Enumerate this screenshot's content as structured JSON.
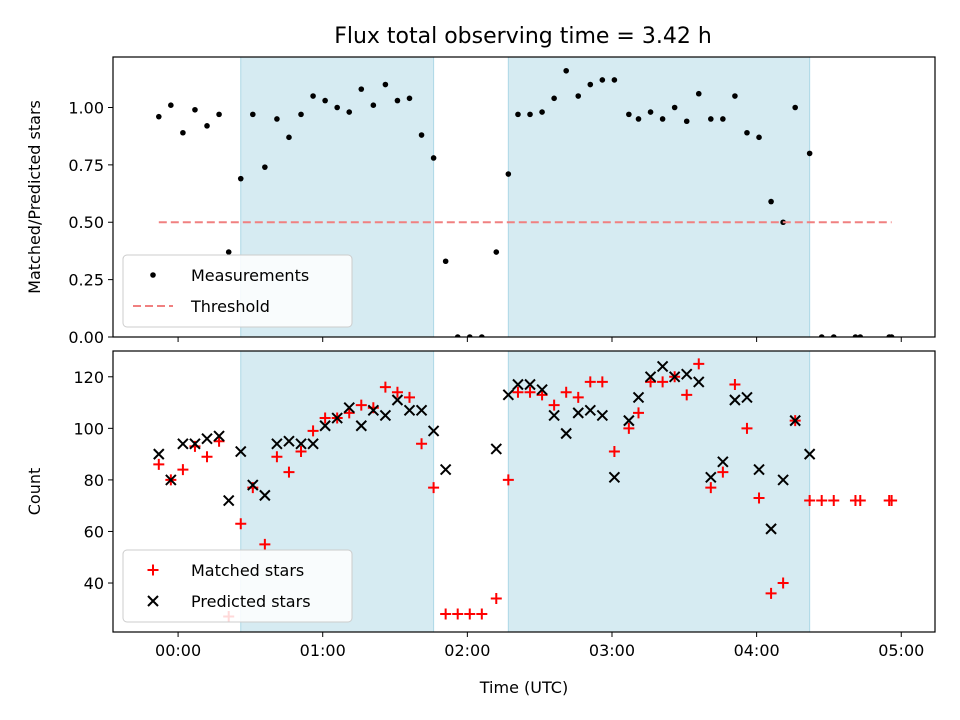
{
  "title": "Flux total observing time = 3.42 h",
  "colors": {
    "shade": "#add8e6",
    "threshold": "#f08080",
    "matched": "#ff0000",
    "predicted": "#000000",
    "measurement": "#000000"
  },
  "chart_data": [
    {
      "type": "scatter",
      "ylabel": "Matched/Predicted stars",
      "xlabel": "",
      "xlim": [
        "23:33",
        "05:14"
      ],
      "ylim": [
        0,
        1.22
      ],
      "y_ticks": [
        "0.00",
        "0.25",
        "0.50",
        "0.75",
        "1.00"
      ],
      "x_ticks": [
        "00:00",
        "01:00",
        "02:00",
        "03:00",
        "04:00",
        "05:00"
      ],
      "shaded_spans": [
        [
          "00:26",
          "01:46"
        ],
        [
          "02:17",
          "04:22"
        ]
      ],
      "legend_placement": "lower-left",
      "series": [
        {
          "name": "Measurements",
          "marker": "dot",
          "points": [
            [
              "23:52",
              0.96
            ],
            [
              "23:57",
              1.01
            ],
            [
              "00:02",
              0.89
            ],
            [
              "00:07",
              0.99
            ],
            [
              "00:12",
              0.92
            ],
            [
              "00:17",
              0.97
            ],
            [
              "00:21",
              0.37
            ],
            [
              "00:26",
              0.69
            ],
            [
              "00:31",
              0.97
            ],
            [
              "00:36",
              0.74
            ],
            [
              "00:41",
              0.95
            ],
            [
              "00:46",
              0.87
            ],
            [
              "00:51",
              0.97
            ],
            [
              "00:56",
              1.05
            ],
            [
              "01:01",
              1.03
            ],
            [
              "01:06",
              1.0
            ],
            [
              "01:11",
              0.98
            ],
            [
              "01:16",
              1.08
            ],
            [
              "01:21",
              1.01
            ],
            [
              "01:26",
              1.1
            ],
            [
              "01:31",
              1.03
            ],
            [
              "01:36",
              1.04
            ],
            [
              "01:41",
              0.88
            ],
            [
              "01:46",
              0.78
            ],
            [
              "01:51",
              0.33
            ],
            [
              "01:56",
              0.0
            ],
            [
              "02:01",
              0.0
            ],
            [
              "02:06",
              0.0
            ],
            [
              "02:12",
              0.37
            ],
            [
              "02:17",
              0.71
            ],
            [
              "02:21",
              0.97
            ],
            [
              "02:26",
              0.97
            ],
            [
              "02:31",
              0.98
            ],
            [
              "02:36",
              1.04
            ],
            [
              "02:41",
              1.16
            ],
            [
              "02:46",
              1.05
            ],
            [
              "02:51",
              1.1
            ],
            [
              "02:56",
              1.12
            ],
            [
              "03:01",
              1.12
            ],
            [
              "03:07",
              0.97
            ],
            [
              "03:11",
              0.95
            ],
            [
              "03:16",
              0.98
            ],
            [
              "03:21",
              0.95
            ],
            [
              "03:26",
              1.0
            ],
            [
              "03:31",
              0.94
            ],
            [
              "03:36",
              1.06
            ],
            [
              "03:41",
              0.95
            ],
            [
              "03:46",
              0.95
            ],
            [
              "03:51",
              1.05
            ],
            [
              "03:56",
              0.89
            ],
            [
              "04:01",
              0.87
            ],
            [
              "04:06",
              0.59
            ],
            [
              "04:11",
              0.5
            ],
            [
              "04:16",
              1.0
            ],
            [
              "04:22",
              0.8
            ],
            [
              "04:27",
              0.0
            ],
            [
              "04:32",
              0.0
            ],
            [
              "04:41",
              0.0
            ],
            [
              "04:43",
              0.0
            ],
            [
              "04:55",
              0.0
            ],
            [
              "04:56",
              0.0
            ]
          ]
        },
        {
          "name": "Threshold",
          "marker": "dashed-line",
          "points": [
            [
              "23:52",
              0.5
            ],
            [
              "04:56",
              0.5
            ]
          ]
        }
      ]
    },
    {
      "type": "scatter",
      "ylabel": "Count",
      "xlabel": "Time (UTC)",
      "xlim": [
        "23:33",
        "05:14"
      ],
      "ylim": [
        21,
        130
      ],
      "y_ticks": [
        "40",
        "60",
        "80",
        "100",
        "120"
      ],
      "x_ticks": [
        "00:00",
        "01:00",
        "02:00",
        "03:00",
        "04:00",
        "05:00"
      ],
      "shaded_spans": [
        [
          "00:26",
          "01:46"
        ],
        [
          "02:17",
          "04:22"
        ]
      ],
      "legend_placement": "lower-left",
      "series": [
        {
          "name": "Matched stars",
          "marker": "plus",
          "points": [
            [
              "23:52",
              86
            ],
            [
              "23:57",
              80
            ],
            [
              "00:02",
              84
            ],
            [
              "00:07",
              93
            ],
            [
              "00:12",
              89
            ],
            [
              "00:17",
              95
            ],
            [
              "00:21",
              27
            ],
            [
              "00:26",
              63
            ],
            [
              "00:31",
              77
            ],
            [
              "00:36",
              55
            ],
            [
              "00:41",
              89
            ],
            [
              "00:46",
              83
            ],
            [
              "00:51",
              91
            ],
            [
              "00:56",
              99
            ],
            [
              "01:01",
              104
            ],
            [
              "01:06",
              104
            ],
            [
              "01:11",
              106
            ],
            [
              "01:16",
              109
            ],
            [
              "01:21",
              108
            ],
            [
              "01:26",
              116
            ],
            [
              "01:31",
              114
            ],
            [
              "01:36",
              112
            ],
            [
              "01:41",
              94
            ],
            [
              "01:46",
              77
            ],
            [
              "01:51",
              28
            ],
            [
              "01:56",
              28
            ],
            [
              "02:01",
              28
            ],
            [
              "02:06",
              28
            ],
            [
              "02:12",
              34
            ],
            [
              "02:17",
              80
            ],
            [
              "02:21",
              114
            ],
            [
              "02:26",
              114
            ],
            [
              "02:31",
              113
            ],
            [
              "02:36",
              109
            ],
            [
              "02:41",
              114
            ],
            [
              "02:46",
              112
            ],
            [
              "02:51",
              118
            ],
            [
              "02:56",
              118
            ],
            [
              "03:01",
              91
            ],
            [
              "03:07",
              100
            ],
            [
              "03:11",
              106
            ],
            [
              "03:16",
              118
            ],
            [
              "03:21",
              118
            ],
            [
              "03:26",
              120
            ],
            [
              "03:31",
              113
            ],
            [
              "03:36",
              125
            ],
            [
              "03:41",
              77
            ],
            [
              "03:46",
              83
            ],
            [
              "03:51",
              117
            ],
            [
              "03:56",
              100
            ],
            [
              "04:01",
              73
            ],
            [
              "04:06",
              36
            ],
            [
              "04:11",
              40
            ],
            [
              "04:16",
              103
            ],
            [
              "04:22",
              72
            ],
            [
              "04:27",
              72
            ],
            [
              "04:32",
              72
            ],
            [
              "04:41",
              72
            ],
            [
              "04:43",
              72
            ],
            [
              "04:55",
              72
            ],
            [
              "04:56",
              72
            ]
          ]
        },
        {
          "name": "Predicted stars",
          "marker": "x",
          "points": [
            [
              "23:52",
              90
            ],
            [
              "23:57",
              80
            ],
            [
              "00:02",
              94
            ],
            [
              "00:07",
              94
            ],
            [
              "00:12",
              96
            ],
            [
              "00:17",
              97
            ],
            [
              "00:21",
              72
            ],
            [
              "00:26",
              91
            ],
            [
              "00:31",
              78
            ],
            [
              "00:36",
              74
            ],
            [
              "00:41",
              94
            ],
            [
              "00:46",
              95
            ],
            [
              "00:51",
              94
            ],
            [
              "00:56",
              94
            ],
            [
              "01:01",
              101
            ],
            [
              "01:06",
              104
            ],
            [
              "01:11",
              108
            ],
            [
              "01:16",
              101
            ],
            [
              "01:21",
              107
            ],
            [
              "01:26",
              105
            ],
            [
              "01:31",
              111
            ],
            [
              "01:36",
              107
            ],
            [
              "01:41",
              107
            ],
            [
              "01:46",
              99
            ],
            [
              "01:51",
              84
            ],
            [
              "02:12",
              92
            ],
            [
              "02:17",
              113
            ],
            [
              "02:21",
              117
            ],
            [
              "02:26",
              117
            ],
            [
              "02:31",
              115
            ],
            [
              "02:36",
              105
            ],
            [
              "02:41",
              98
            ],
            [
              "02:46",
              106
            ],
            [
              "02:51",
              107
            ],
            [
              "02:56",
              105
            ],
            [
              "03:01",
              81
            ],
            [
              "03:07",
              103
            ],
            [
              "03:11",
              112
            ],
            [
              "03:16",
              120
            ],
            [
              "03:21",
              124
            ],
            [
              "03:26",
              120
            ],
            [
              "03:31",
              121
            ],
            [
              "03:36",
              118
            ],
            [
              "03:41",
              81
            ],
            [
              "03:46",
              87
            ],
            [
              "03:51",
              111
            ],
            [
              "03:56",
              112
            ],
            [
              "04:01",
              84
            ],
            [
              "04:06",
              61
            ],
            [
              "04:11",
              80
            ],
            [
              "04:16",
              103
            ],
            [
              "04:22",
              90
            ]
          ]
        }
      ]
    }
  ]
}
